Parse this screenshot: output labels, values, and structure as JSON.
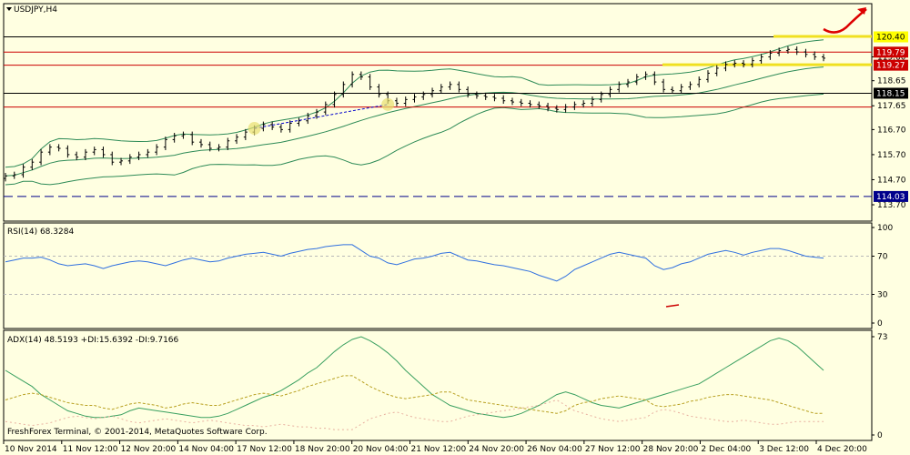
{
  "chart_data": [
    {
      "type": "candlestick",
      "title": "USDJPY,H4",
      "symbol": "USDJPY",
      "timeframe": "H4",
      "ylim": [
        113.7,
        120.5
      ],
      "y_ticks": [
        113.7,
        114.7,
        115.7,
        116.7,
        117.65,
        118.65,
        119.6
      ],
      "x_ticks": [
        "10 Nov 2014",
        "11 Nov 12:00",
        "12 Nov 20:00",
        "14 Nov 04:00",
        "17 Nov 12:00",
        "18 Nov 20:00",
        "20 Nov 04:00",
        "21 Nov 12:00",
        "24 Nov 20:00",
        "26 Nov 04:00",
        "27 Nov 12:00",
        "28 Nov 20:00",
        "2 Dec 04:00",
        "3 Dec 12:00",
        "4 Dec 20:00"
      ],
      "close_series": [
        114.85,
        114.9,
        115.2,
        115.4,
        115.8,
        116.0,
        115.95,
        115.7,
        115.6,
        115.8,
        115.9,
        115.7,
        115.4,
        115.45,
        115.6,
        115.7,
        115.8,
        116.0,
        116.3,
        116.45,
        116.5,
        116.2,
        116.1,
        115.95,
        116.0,
        116.25,
        116.4,
        116.6,
        116.75,
        116.9,
        116.8,
        116.7,
        116.95,
        117.05,
        117.25,
        117.4,
        117.7,
        118.1,
        118.5,
        118.9,
        118.8,
        118.4,
        118.1,
        117.85,
        117.75,
        117.9,
        118.0,
        118.1,
        118.25,
        118.4,
        118.5,
        118.3,
        118.1,
        118.05,
        118.0,
        117.95,
        117.85,
        117.8,
        117.75,
        117.7,
        117.65,
        117.55,
        117.5,
        117.6,
        117.7,
        117.75,
        117.9,
        118.1,
        118.3,
        118.5,
        118.6,
        118.8,
        118.9,
        118.6,
        118.3,
        118.25,
        118.4,
        118.5,
        118.7,
        118.95,
        119.15,
        119.3,
        119.35,
        119.3,
        119.45,
        119.6,
        119.75,
        119.85,
        119.9,
        119.8,
        119.7,
        119.6,
        119.55
      ],
      "levels": [
        {
          "value": 120.4,
          "label": "120.40",
          "color": "#ffff00"
        },
        {
          "value": 119.79,
          "label": "119.79",
          "color": "#cc0000"
        },
        {
          "value": 119.27,
          "label": "119.27",
          "color": "#cc0000"
        },
        {
          "value": 118.15,
          "label": "118.15",
          "color": "#000000"
        },
        {
          "value": 117.6,
          "label": "",
          "color": "#cc0000"
        },
        {
          "value": 114.03,
          "label": "114.03",
          "color": "#00008b"
        }
      ],
      "indicators": "Bollinger Bands"
    },
    {
      "type": "line",
      "title": "RSI(14) 68.3284",
      "ylim": [
        0,
        100
      ],
      "y_ticks": [
        0,
        30,
        70,
        100
      ],
      "series": [
        {
          "values": [
            64,
            66,
            68,
            68,
            69,
            66,
            62,
            60,
            61,
            62,
            60,
            57,
            60,
            62,
            64,
            65,
            64,
            62,
            60,
            63,
            66,
            68,
            66,
            64,
            65,
            68,
            70,
            72,
            73,
            74,
            72,
            70,
            73,
            75,
            77,
            78,
            80,
            81,
            82,
            82,
            76,
            70,
            68,
            63,
            61,
            64,
            67,
            68,
            70,
            73,
            74,
            70,
            66,
            65,
            63,
            61,
            60,
            58,
            56,
            54,
            50,
            47,
            44,
            49,
            56,
            60,
            64,
            68,
            72,
            74,
            72,
            70,
            68,
            60,
            56,
            58,
            62,
            64,
            68,
            72,
            74,
            76,
            74,
            71,
            74,
            76,
            78,
            78,
            76,
            73,
            70,
            69,
            68
          ]
        }
      ]
    },
    {
      "type": "line",
      "title": "ADX(14) 48.5193 +DI:15.6392 -DI:9.7166",
      "ylim": [
        0,
        73
      ],
      "y_ticks": [
        0,
        73
      ],
      "series": [
        {
          "values": [
            48,
            44,
            40,
            36,
            30,
            26,
            22,
            18,
            16,
            14,
            13,
            13,
            14,
            15,
            18,
            20,
            19,
            18,
            17,
            16,
            15,
            14,
            13,
            13,
            14,
            16,
            19,
            22,
            25,
            28,
            30,
            33,
            37,
            41,
            46,
            50,
            56,
            62,
            67,
            71,
            73,
            70,
            66,
            61,
            55,
            48,
            42,
            36,
            30,
            26,
            22,
            20,
            18,
            16,
            15,
            14,
            13,
            14,
            16,
            19,
            22,
            26,
            30,
            32,
            30,
            27,
            24,
            22,
            21,
            20,
            22,
            24,
            26,
            28,
            30,
            32,
            34,
            36,
            38,
            42,
            46,
            50,
            54,
            58,
            62,
            66,
            70,
            72,
            70,
            66,
            60,
            54,
            48
          ],
          "color": "#3aa060"
        },
        {
          "values": [
            26,
            28,
            30,
            31,
            30,
            28,
            26,
            24,
            23,
            22,
            22,
            20,
            19,
            21,
            23,
            24,
            23,
            22,
            20,
            21,
            23,
            24,
            23,
            22,
            22,
            24,
            26,
            28,
            30,
            31,
            30,
            29,
            31,
            33,
            36,
            38,
            40,
            42,
            44,
            44,
            40,
            36,
            33,
            30,
            28,
            27,
            28,
            29,
            30,
            32,
            32,
            29,
            26,
            25,
            24,
            23,
            22,
            21,
            20,
            19,
            18,
            17,
            16,
            18,
            22,
            24,
            25,
            27,
            28,
            29,
            28,
            27,
            26,
            22,
            21,
            22,
            23,
            25,
            26,
            28,
            29,
            30,
            30,
            29,
            28,
            27,
            26,
            24,
            22,
            20,
            18,
            16,
            16
          ],
          "color": "#b8a020"
        },
        {
          "values": [
            10,
            9,
            8,
            7,
            8,
            9,
            11,
            13,
            14,
            13,
            12,
            13,
            14,
            12,
            10,
            9,
            10,
            11,
            12,
            11,
            10,
            9,
            10,
            11,
            10,
            9,
            8,
            7,
            7,
            6,
            7,
            8,
            7,
            6,
            6,
            5,
            5,
            4,
            4,
            4,
            8,
            12,
            14,
            16,
            17,
            15,
            13,
            12,
            11,
            10,
            10,
            12,
            14,
            15,
            16,
            17,
            18,
            19,
            20,
            21,
            22,
            24,
            26,
            22,
            18,
            16,
            14,
            12,
            11,
            10,
            11,
            12,
            13,
            17,
            19,
            18,
            16,
            14,
            13,
            12,
            11,
            10,
            10,
            11,
            10,
            9,
            8,
            8,
            9,
            10,
            10,
            10,
            10
          ],
          "color": "#e8b0a0"
        }
      ]
    }
  ],
  "footer": "FreshForex Terminal, © 2001-2014, MetaQuotes Software Corp."
}
